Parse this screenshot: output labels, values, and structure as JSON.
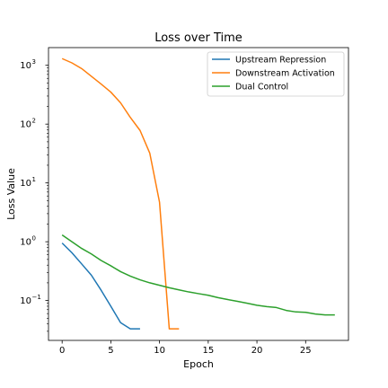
{
  "chart_data": {
    "type": "line",
    "title": "Loss over Time",
    "xlabel": "Epoch",
    "ylabel": "Loss Value",
    "yscale": "log",
    "xlim": [
      -1.4,
      29.4
    ],
    "ylim": [
      0.021,
      2000
    ],
    "x_ticks": [
      0,
      5,
      10,
      15,
      20,
      25
    ],
    "y_ticks": [
      {
        "value": 0.1,
        "base": "10",
        "exp": "−1"
      },
      {
        "value": 1,
        "base": "10",
        "exp": "0"
      },
      {
        "value": 10,
        "base": "10",
        "exp": "1"
      },
      {
        "value": 100,
        "base": "10",
        "exp": "2"
      },
      {
        "value": 1000,
        "base": "10",
        "exp": "3"
      }
    ],
    "grid": false,
    "legend_position": "upper-right",
    "series": [
      {
        "name": "Upstream Repression",
        "color": "#1f77b4",
        "x": [
          0,
          1,
          2,
          3,
          4,
          5,
          6,
          7,
          8
        ],
        "y": [
          0.95,
          0.65,
          0.42,
          0.27,
          0.15,
          0.08,
          0.042,
          0.033,
          0.033
        ]
      },
      {
        "name": "Downstream Activation",
        "color": "#ff7f0e",
        "x": [
          0,
          1,
          2,
          3,
          4,
          5,
          6,
          7,
          8,
          9,
          10,
          11,
          12
        ],
        "y": [
          1300,
          1100,
          880,
          650,
          480,
          350,
          230,
          130,
          78,
          32,
          4.7,
          0.033,
          0.033
        ]
      },
      {
        "name": "Dual Control",
        "color": "#2ca02c",
        "x": [
          0,
          1,
          2,
          3,
          4,
          5,
          6,
          7,
          8,
          9,
          10,
          11,
          12,
          13,
          14,
          15,
          16,
          17,
          18,
          19,
          20,
          21,
          22,
          23,
          24,
          25,
          26,
          27,
          28
        ],
        "y": [
          1.3,
          1.0,
          0.77,
          0.62,
          0.48,
          0.39,
          0.31,
          0.26,
          0.225,
          0.2,
          0.182,
          0.165,
          0.152,
          0.14,
          0.131,
          0.123,
          0.112,
          0.104,
          0.097,
          0.09,
          0.083,
          0.079,
          0.076,
          0.068,
          0.064,
          0.063,
          0.059,
          0.057,
          0.057
        ]
      }
    ]
  }
}
